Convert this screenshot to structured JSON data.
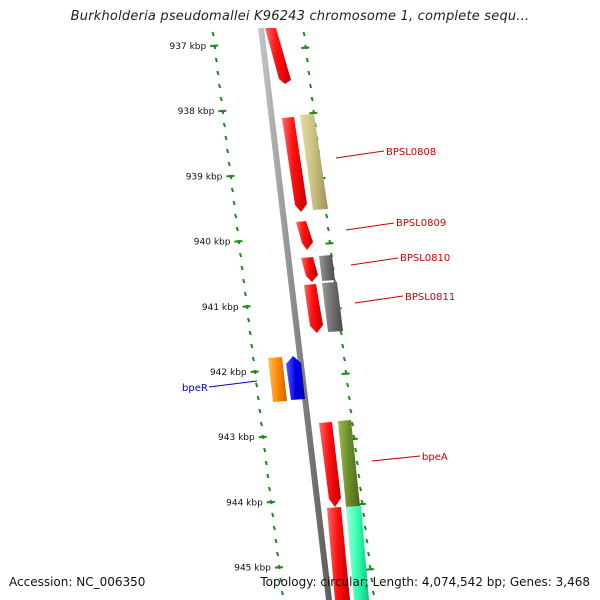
{
  "title": "Burkholderia pseudomallei K96243 chromosome 1, complete sequ...",
  "footer": {
    "accession": "Accession: NC_006350",
    "info": "Topology: circular; Length: 4,074,542 bp; Genes: 3,468"
  },
  "colors": {
    "backbone": "#8a8a8a",
    "tick": "#1a8a1a",
    "cds_red": "#ff1a1a",
    "label_red": "#cc0000",
    "label_blue": "#0000cc",
    "khaki": "#c8c080",
    "grey": "#6e6e6e",
    "orange": "#ff8a00",
    "blue": "#0000ee",
    "olive": "#6b8c2a",
    "teal": "#33ffb0"
  },
  "ticks": [
    {
      "kbp": 937,
      "label": "937 kbp"
    },
    {
      "kbp": 938,
      "label": "938 kbp"
    },
    {
      "kbp": 939,
      "label": "939 kbp"
    },
    {
      "kbp": 940,
      "label": "940 kbp"
    },
    {
      "kbp": 941,
      "label": "941 kbp"
    },
    {
      "kbp": 942,
      "label": "942 kbp"
    },
    {
      "kbp": 943,
      "label": "943 kbp"
    },
    {
      "kbp": 944,
      "label": "944 kbp"
    },
    {
      "kbp": 945,
      "label": "945 kbp"
    }
  ],
  "gene_labels": [
    {
      "id": "BPSL0808",
      "text": "BPSL0808",
      "color": "label_red"
    },
    {
      "id": "BPSL0809",
      "text": "BPSL0809",
      "color": "label_red"
    },
    {
      "id": "BPSL0810",
      "text": "BPSL0810",
      "color": "label_red"
    },
    {
      "id": "BPSL0811",
      "text": "BPSL0811",
      "color": "label_red"
    },
    {
      "id": "bpeR",
      "text": "bpeR",
      "color": "label_blue"
    },
    {
      "id": "bpeA",
      "text": "bpeA",
      "color": "label_red"
    }
  ]
}
